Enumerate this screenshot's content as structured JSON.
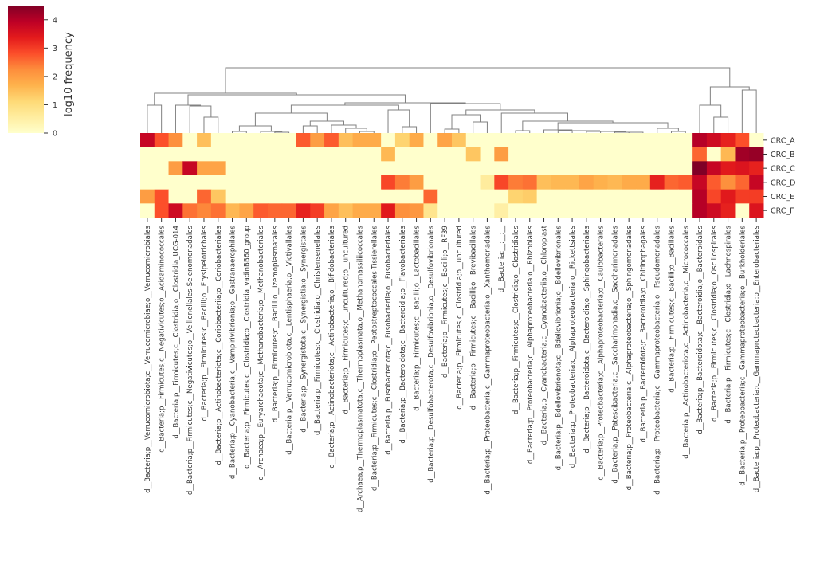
{
  "chart_data": {
    "type": "heatmap",
    "title": "",
    "colormap": "YlOrRd",
    "vmin": 0,
    "vmax": 4.5,
    "colorbar": {
      "label": "log10 frequency",
      "ticks": [
        "0",
        "1",
        "2",
        "3",
        "4"
      ]
    },
    "dendrogram": "columns",
    "rows": [
      "CRC_A",
      "CRC_B",
      "CRC_C",
      "CRC_D",
      "CRC_E",
      "CRC_F"
    ],
    "columns": [
      "d__Bacteria;p__Verrucomicrobiota;c__Verrucomicrobiae;o__Verrucomicrobiales",
      "d__Bacteria;p__Firmicutes;c__Negativicutes;o__Acidaminococcales",
      "d__Bacteria;p__Firmicutes;c__Clostridia;o__Clostridia_UCG-014",
      "d__Bacteria;p__Firmicutes;c__Negativicutes;o__Veillonellales-Selenomonadales",
      "d__Bacteria;p__Firmicutes;c__Bacilli;o__Erysipelotrichales",
      "d__Bacteria;p__Actinobacteriota;c__Coriobacteriia;o__Coriobacteriales",
      "d__Bacteria;p__Cyanobacteria;c__Vampirivibrionia;o__Gastranaerophilales",
      "d__Bacteria;p__Firmicutes;c__Clostridia;o__Clostridia_vadinBB60_group",
      "d__Archaea;p__Euryarchaeota;c__Methanobacteria;o__Methanobacteriales",
      "d__Bacteria;p__Firmicutes;c__Bacilli;o__Izemoplasmatales",
      "d__Bacteria;p__Verrucomicrobiota;c__Lentisphaeria;o__Victivallales",
      "d__Bacteria;p__Synergistota;c__Synergistia;o__Synergistales",
      "d__Bacteria;p__Firmicutes;c__Clostridia;o__Christensenellales",
      "d__Bacteria;p__Actinobacteriota;c__Actinobacteria;o__Bifidobacteriales",
      "d__Bacteria;p__Firmicutes;c__uncultured;o__uncultured",
      "d__Archaea;p__Thermoplasmatota;c__Thermoplasmata;o__Methanomassiliicoccales",
      "d__Bacteria;p__Firmicutes;c__Clostridia;o__Peptostreptococcales-Tissierellales",
      "d__Bacteria;p__Fusobacteriota;c__Fusobacteriia;o__Fusobacteriales",
      "d__Bacteria;p__Bacteroidota;c__Bacteroidia;o__Flavobacteriales",
      "d__Bacteria;p__Firmicutes;c__Bacilli;o__Lactobacillales",
      "d__Bacteria;p__Desulfobacterota;c__Desulfovibrionia;o__Desulfovibrionales",
      "d__Bacteria;p__Firmicutes;c__Bacilli;o__RF39",
      "d__Bacteria;p__Firmicutes;c__Clostridia;o__uncultured",
      "d__Bacteria;p__Firmicutes;c__Bacilli;o__Brevibacillales",
      "d__Bacteria;p__Proteobacteria;c__Gammaproteobacteria;o__Xanthomonadales",
      "d__Bacteria;__;__;__",
      "d__Bacteria;p__Firmicutes;c__Clostridia;o__Clostridiales",
      "d__Bacteria;p__Proteobacteria;c__Alphaproteobacteria;o__Rhizobiales",
      "d__Bacteria;p__Cyanobacteria;c__Cyanobacteriia;o__Chloroplast",
      "d__Bacteria;p__Bdellovibrionota;c__Bdellovibrionia;o__Bdellovibrionales",
      "d__Bacteria;p__Proteobacteria;c__Alphaproteobacteria;o__Rickettsiales",
      "d__Bacteria;p__Bacteroidota;c__Bacteroidia;o__Sphingobacteriales",
      "d__Bacteria;p__Proteobacteria;c__Alphaproteobacteria;o__Caulobacterales",
      "d__Bacteria;p__Patescibacteria;c__Saccharimonadia;o__Saccharimonadales",
      "d__Bacteria;p__Proteobacteria;c__Alphaproteobacteria;o__Sphingomonadales",
      "d__Bacteria;p__Bacteroidota;c__Bacteroidia;o__Chitinophagales",
      "d__Bacteria;p__Proteobacteria;c__Gammaproteobacteria;o__Pseudomonadales",
      "d__Bacteria;p__Firmicutes;c__Bacilli;o__Bacillales",
      "d__Bacteria;p__Actinobacteriota;c__Actinobacteria;o__Micrococcales",
      "d__Bacteria;p__Bacteroidota;c__Bacteroidia;o__Bacteroidales",
      "d__Bacteria;p__Firmicutes;c__Clostridia;o__Oscillospirales",
      "d__Bacteria;p__Firmicutes;c__Clostridia;o__Lachnospirales",
      "d__Bacteria;p__Proteobacteria;c__Gammaproteobacteria;o__Burkholderiales",
      "d__Bacteria;p__Proteobacteria;c__Gammaproteobacteria;o__Enterobacteriales"
    ],
    "values": [
      [
        3.8,
        2.8,
        2.2,
        0,
        1.5,
        0,
        0,
        0,
        0,
        0,
        0,
        2.7,
        2.0,
        2.7,
        1.5,
        1.8,
        1.8,
        0,
        1.2,
        1.8,
        0,
        1.9,
        1.4,
        0,
        0,
        0,
        0,
        0,
        0,
        0,
        0,
        0,
        0,
        0,
        0,
        0,
        0,
        0,
        0,
        4.0,
        3.7,
        3.3,
        2.8,
        0
      ],
      [
        0,
        0,
        0,
        0,
        0,
        0,
        0,
        0,
        0,
        0,
        0,
        0,
        0,
        0,
        0,
        0,
        0,
        1.6,
        0,
        0,
        0,
        0,
        0,
        1.4,
        0,
        2.0,
        0,
        0,
        0,
        0,
        0,
        0,
        0,
        0,
        0,
        0,
        0,
        0,
        0,
        2.6,
        0,
        1.6,
        4.2,
        4.3
      ],
      [
        0,
        0,
        2.0,
        3.8,
        1.9,
        1.9,
        0,
        0,
        0,
        0,
        0,
        0,
        0,
        0,
        0,
        0,
        0,
        0,
        0,
        0,
        0,
        0,
        0,
        0,
        0,
        0,
        0,
        0,
        0,
        0,
        0,
        0,
        0,
        0,
        0,
        0,
        0,
        0,
        0,
        4.5,
        3.8,
        3.4,
        3.5,
        3.3
      ],
      [
        0,
        0,
        0,
        0,
        0,
        0,
        0,
        0,
        0,
        0,
        0,
        0,
        0,
        0,
        0,
        0,
        0,
        2.9,
        2.4,
        2.0,
        0,
        0,
        0,
        0,
        0.6,
        2.9,
        2.4,
        2.5,
        1.5,
        1.6,
        1.6,
        1.9,
        1.7,
        1.6,
        1.8,
        1.8,
        3.3,
        2.6,
        2.7,
        3.8,
        2.7,
        2.2,
        2.6,
        3.8
      ],
      [
        2.0,
        2.8,
        0,
        0,
        2.6,
        1.4,
        0,
        0,
        0,
        0,
        0,
        0,
        0,
        0,
        0,
        0,
        0,
        0,
        0,
        0,
        2.6,
        0,
        0,
        0,
        0,
        0,
        1.2,
        1.3,
        0,
        0,
        0,
        0,
        0,
        0,
        0,
        0,
        0,
        0,
        0,
        4.0,
        2.9,
        3.4,
        3.0,
        3.0
      ],
      [
        0,
        2.8,
        3.7,
        2.5,
        2.3,
        2.5,
        1.6,
        1.9,
        2.7,
        2.6,
        2.6,
        3.3,
        3.0,
        1.9,
        1.5,
        1.8,
        1.8,
        3.4,
        2.2,
        2.1,
        0.8,
        0,
        0,
        0,
        0,
        0.5,
        0,
        0,
        0,
        0,
        0,
        0,
        0,
        0,
        0,
        0,
        0,
        0,
        0,
        4.0,
        3.7,
        3.3,
        0,
        3.5
      ]
    ],
    "line_color": "#808080"
  }
}
